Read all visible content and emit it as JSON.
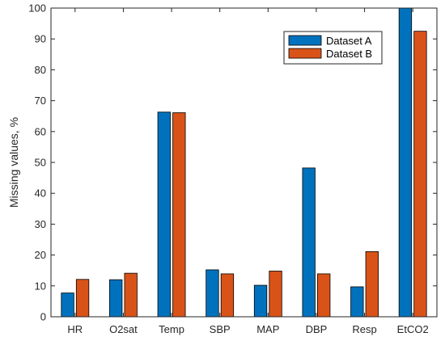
{
  "chart_data": {
    "type": "bar",
    "categories": [
      "HR",
      "O2sat",
      "Temp",
      "SBP",
      "MAP",
      "DBP",
      "Resp",
      "EtCO2"
    ],
    "series": [
      {
        "name": "Dataset A",
        "color": "#0072BD",
        "values": [
          7.7,
          12.0,
          66.3,
          15.2,
          10.2,
          48.2,
          9.7,
          100
        ]
      },
      {
        "name": "Dataset B",
        "color": "#D95319",
        "values": [
          12.1,
          14.1,
          66.1,
          13.9,
          14.8,
          13.9,
          21.1,
          92.5
        ]
      }
    ],
    "ylabel": "Missing values, %",
    "ylim": [
      0,
      100
    ],
    "yticks": [
      0,
      10,
      20,
      30,
      40,
      50,
      60,
      70,
      80,
      90,
      100
    ],
    "grid": false,
    "legend_position": "top-right"
  }
}
